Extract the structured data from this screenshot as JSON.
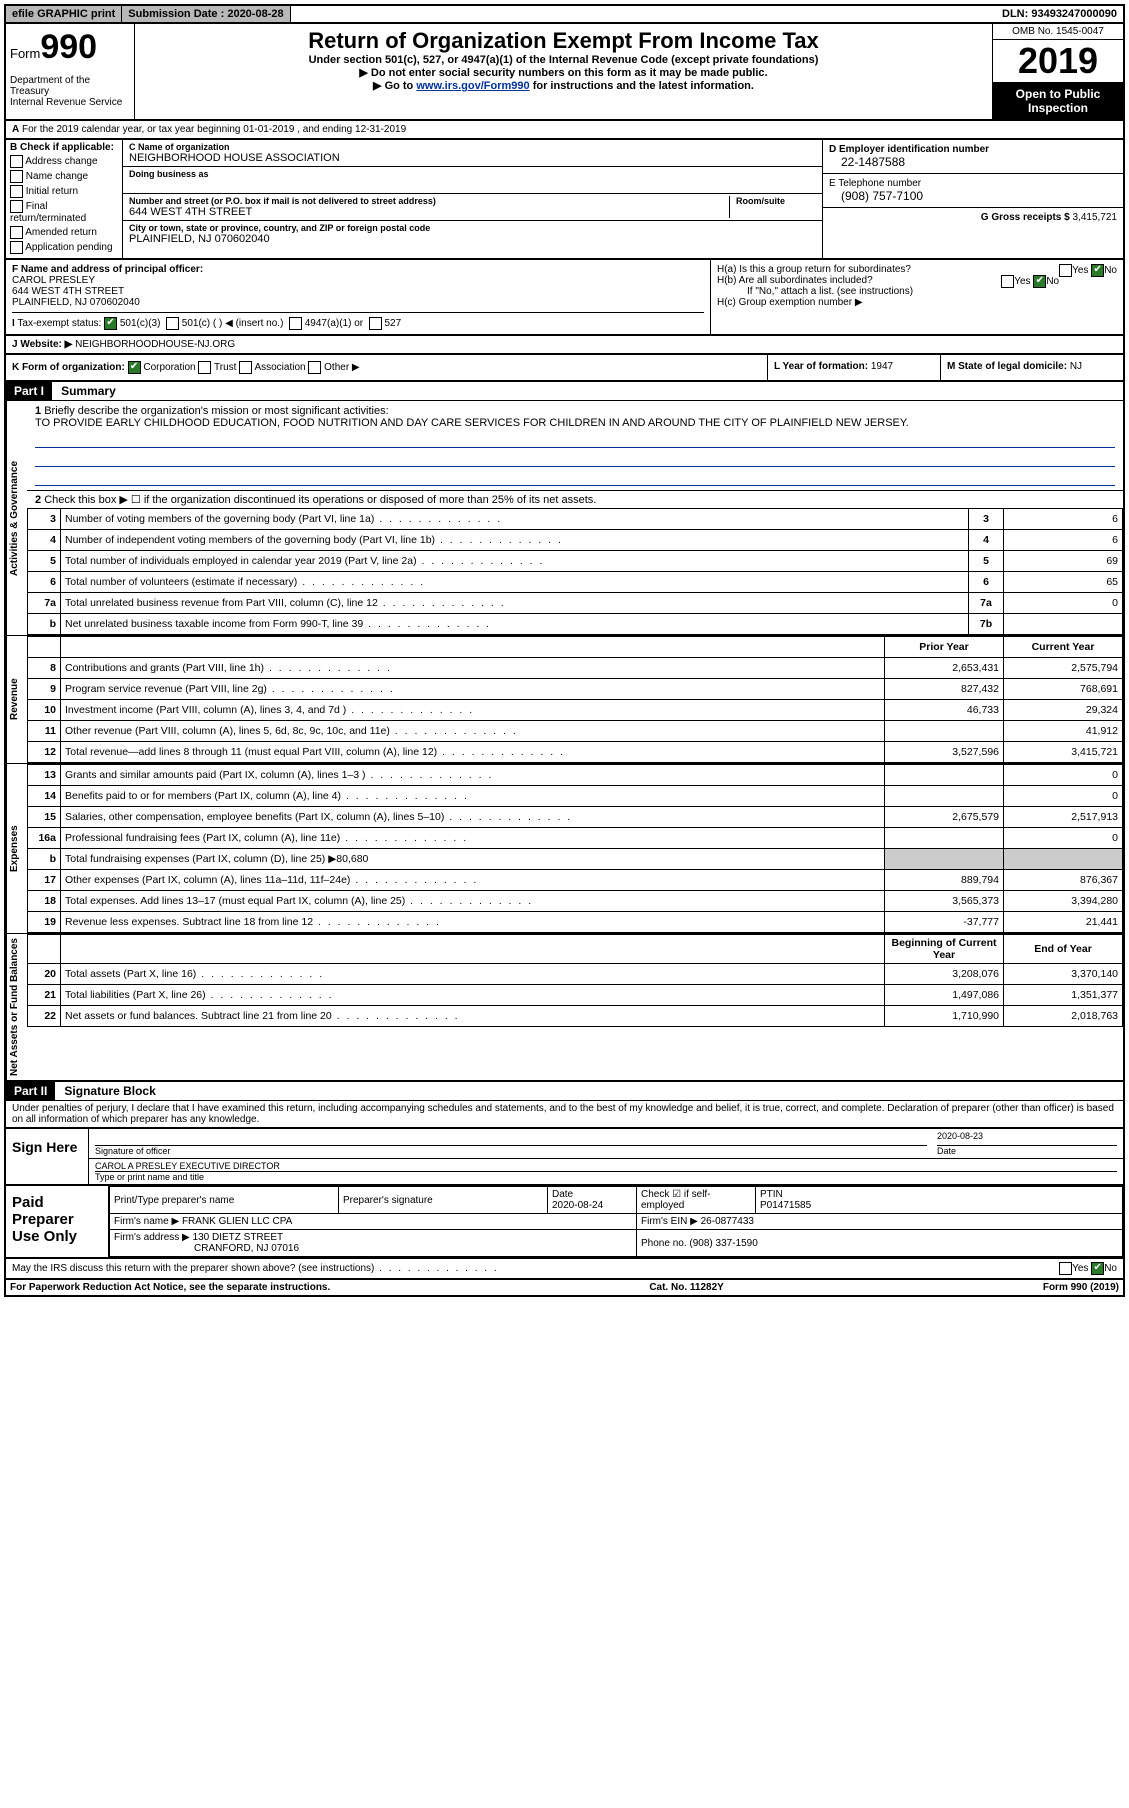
{
  "topbar": {
    "efile": "efile GRAPHIC print",
    "subdate_label": "Submission Date :",
    "subdate": "2020-08-28",
    "dln_label": "DLN:",
    "dln": "93493247000090"
  },
  "header": {
    "form_word": "Form",
    "form_num": "990",
    "dept1": "Department of the Treasury",
    "dept2": "Internal Revenue Service",
    "title": "Return of Organization Exempt From Income Tax",
    "sub1": "Under section 501(c), 527, or 4947(a)(1) of the Internal Revenue Code (except private foundations)",
    "sub2": "Do not enter social security numbers on this form as it may be made public.",
    "sub3_pre": "Go to ",
    "sub3_link": "www.irs.gov/Form990",
    "sub3_post": " for instructions and the latest information.",
    "omb": "OMB No. 1545-0047",
    "year": "2019",
    "open": "Open to Public Inspection"
  },
  "period": "For the 2019 calendar year, or tax year beginning 01-01-2019    , and ending 12-31-2019",
  "checkB": {
    "title": "B Check if applicable:",
    "items": [
      "Address change",
      "Name change",
      "Initial return",
      "Final return/terminated",
      "Amended return",
      "Application pending"
    ]
  },
  "org": {
    "c_label": "C Name of organization",
    "name": "NEIGHBORHOOD HOUSE ASSOCIATION",
    "dba_label": "Doing business as",
    "addr_label": "Number and street (or P.O. box if mail is not delivered to street address)",
    "room_label": "Room/suite",
    "addr": "644 WEST 4TH STREET",
    "city_label": "City or town, state or province, country, and ZIP or foreign postal code",
    "city": "PLAINFIELD, NJ  070602040"
  },
  "rightIdent": {
    "d_label": "D Employer identification number",
    "ein": "22-1487588",
    "e_label": "E Telephone number",
    "phone": "(908) 757-7100",
    "g_label": "G Gross receipts $",
    "gross": "3,415,721"
  },
  "f": {
    "label": "F  Name and address of principal officer:",
    "name": "CAROL PRESLEY",
    "addr1": "644 WEST 4TH STREET",
    "addr2": "PLAINFIELD, NJ  070602040"
  },
  "h": {
    "a": "H(a)  Is this a group return for subordinates?",
    "b": "H(b)  Are all subordinates included?",
    "b_note": "If \"No,\" attach a list. (see instructions)",
    "c": "H(c)  Group exemption number ▶"
  },
  "i": {
    "label": "Tax-exempt status:",
    "opts": [
      "501(c)(3)",
      "501(c) (   ) ◀ (insert no.)",
      "4947(a)(1) or",
      "527"
    ]
  },
  "j": {
    "label": "J",
    "website_label": "Website: ▶",
    "website": "NEIGHBORHOODHOUSE-NJ.ORG"
  },
  "k": {
    "label": "K Form of organization:",
    "opts": [
      "Corporation",
      "Trust",
      "Association",
      "Other ▶"
    ],
    "l_label": "L Year of formation:",
    "l_val": "1947",
    "m_label": "M State of legal domicile:",
    "m_val": "NJ"
  },
  "part1": {
    "hdr": "Part I",
    "title": "Summary",
    "q1": "Briefly describe the organization's mission or most significant activities:",
    "mission": "TO PROVIDE EARLY CHILDHOOD EDUCATION, FOOD NUTRITION AND DAY CARE SERVICES FOR CHILDREN IN AND AROUND THE CITY OF PLAINFIELD NEW JERSEY.",
    "q2": "Check this box ▶ ☐  if the organization discontinued its operations or disposed of more than 25% of its net assets.",
    "rows_gov": [
      {
        "n": "3",
        "d": "Number of voting members of the governing body (Part VI, line 1a)",
        "box": "3",
        "v": "6"
      },
      {
        "n": "4",
        "d": "Number of independent voting members of the governing body (Part VI, line 1b)",
        "box": "4",
        "v": "6"
      },
      {
        "n": "5",
        "d": "Total number of individuals employed in calendar year 2019 (Part V, line 2a)",
        "box": "5",
        "v": "69"
      },
      {
        "n": "6",
        "d": "Total number of volunteers (estimate if necessary)",
        "box": "6",
        "v": "65"
      },
      {
        "n": "7a",
        "d": "Total unrelated business revenue from Part VIII, column (C), line 12",
        "box": "7a",
        "v": "0"
      },
      {
        "n": "b",
        "d": "Net unrelated business taxable income from Form 990-T, line 39",
        "box": "7b",
        "v": ""
      }
    ],
    "col_hdr_prior": "Prior Year",
    "col_hdr_curr": "Current Year",
    "rows_rev": [
      {
        "n": "8",
        "d": "Contributions and grants (Part VIII, line 1h)",
        "py": "2,653,431",
        "cy": "2,575,794"
      },
      {
        "n": "9",
        "d": "Program service revenue (Part VIII, line 2g)",
        "py": "827,432",
        "cy": "768,691"
      },
      {
        "n": "10",
        "d": "Investment income (Part VIII, column (A), lines 3, 4, and 7d )",
        "py": "46,733",
        "cy": "29,324"
      },
      {
        "n": "11",
        "d": "Other revenue (Part VIII, column (A), lines 5, 6d, 8c, 9c, 10c, and 11e)",
        "py": "",
        "cy": "41,912"
      },
      {
        "n": "12",
        "d": "Total revenue—add lines 8 through 11 (must equal Part VIII, column (A), line 12)",
        "py": "3,527,596",
        "cy": "3,415,721"
      }
    ],
    "rows_exp": [
      {
        "n": "13",
        "d": "Grants and similar amounts paid (Part IX, column (A), lines 1–3 )",
        "py": "",
        "cy": "0"
      },
      {
        "n": "14",
        "d": "Benefits paid to or for members (Part IX, column (A), line 4)",
        "py": "",
        "cy": "0"
      },
      {
        "n": "15",
        "d": "Salaries, other compensation, employee benefits (Part IX, column (A), lines 5–10)",
        "py": "2,675,579",
        "cy": "2,517,913"
      },
      {
        "n": "16a",
        "d": "Professional fundraising fees (Part IX, column (A), line 11e)",
        "py": "",
        "cy": "0"
      },
      {
        "n": "b",
        "d": "Total fundraising expenses (Part IX, column (D), line 25) ▶80,680",
        "shade": true
      },
      {
        "n": "17",
        "d": "Other expenses (Part IX, column (A), lines 11a–11d, 11f–24e)",
        "py": "889,794",
        "cy": "876,367"
      },
      {
        "n": "18",
        "d": "Total expenses. Add lines 13–17 (must equal Part IX, column (A), line 25)",
        "py": "3,565,373",
        "cy": "3,394,280"
      },
      {
        "n": "19",
        "d": "Revenue less expenses. Subtract line 18 from line 12",
        "py": "-37,777",
        "cy": "21,441"
      }
    ],
    "col_hdr_beg": "Beginning of Current Year",
    "col_hdr_end": "End of Year",
    "rows_net": [
      {
        "n": "20",
        "d": "Total assets (Part X, line 16)",
        "py": "3,208,076",
        "cy": "3,370,140"
      },
      {
        "n": "21",
        "d": "Total liabilities (Part X, line 26)",
        "py": "1,497,086",
        "cy": "1,351,377"
      },
      {
        "n": "22",
        "d": "Net assets or fund balances. Subtract line 21 from line 20",
        "py": "1,710,990",
        "cy": "2,018,763"
      }
    ],
    "vtabs": [
      "Activities & Governance",
      "Revenue",
      "Expenses",
      "Net Assets or Fund Balances"
    ]
  },
  "part2": {
    "hdr": "Part II",
    "title": "Signature Block",
    "perjury": "Under penalties of perjury, I declare that I have examined this return, including accompanying schedules and statements, and to the best of my knowledge and belief, it is true, correct, and complete. Declaration of preparer (other than officer) is based on all information of which preparer has any knowledge.",
    "sign_here": "Sign Here",
    "sig_officer": "Signature of officer",
    "date_lbl": "Date",
    "sig_date": "2020-08-23",
    "typed": "CAROL A PRESLEY  EXECUTIVE DIRECTOR",
    "typed_lbl": "Type or print name and title",
    "paid": "Paid Preparer Use Only",
    "prep_name_lbl": "Print/Type preparer's name",
    "prep_sig_lbl": "Preparer's signature",
    "prep_date_lbl": "Date",
    "prep_date": "2020-08-24",
    "check_if": "Check ☑ if self-employed",
    "ptin_lbl": "PTIN",
    "ptin": "P01471585",
    "firm_name_lbl": "Firm's name    ▶",
    "firm_name": "FRANK GLIEN LLC CPA",
    "firm_ein_lbl": "Firm's EIN ▶",
    "firm_ein": "26-0877433",
    "firm_addr_lbl": "Firm's address ▶",
    "firm_addr1": "130 DIETZ STREET",
    "firm_addr2": "CRANFORD, NJ  07016",
    "phone_lbl": "Phone no.",
    "phone": "(908) 337-1590",
    "discuss": "May the IRS discuss this return with the preparer shown above? (see instructions)"
  },
  "footer": {
    "pra": "For Paperwork Reduction Act Notice, see the separate instructions.",
    "cat": "Cat. No. 11282Y",
    "form": "Form 990 (2019)"
  }
}
